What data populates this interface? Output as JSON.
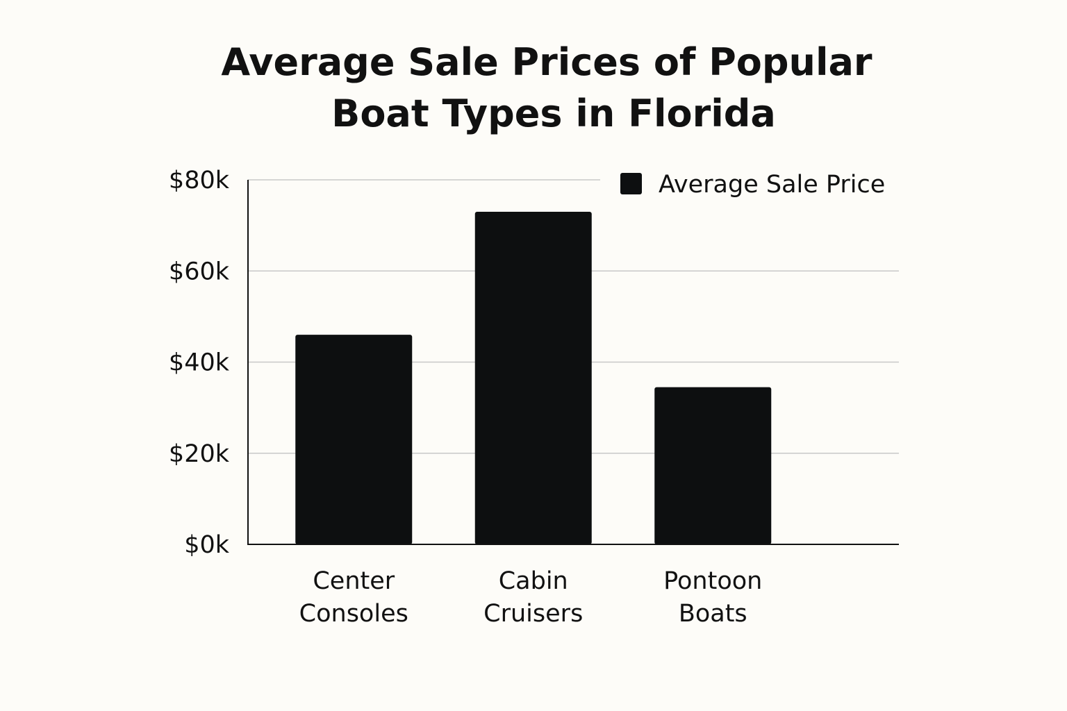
{
  "chart_data": {
    "type": "bar",
    "title_lines": [
      "Average Sale Prices of Popular",
      "Boat Types in Florida"
    ],
    "categories": [
      [
        "Center",
        "Consoles"
      ],
      [
        "Cabin",
        "Cruisers"
      ],
      [
        "Pontoon",
        "Boats"
      ]
    ],
    "series": [
      {
        "name": "Average Sale Price",
        "values": [
          46000,
          73000,
          34500
        ],
        "color": "#0d0f10"
      }
    ],
    "ylim": [
      0,
      80000
    ],
    "yticks": [
      0,
      20000,
      40000,
      60000,
      80000
    ],
    "ytick_labels": [
      "$0k",
      "$20k",
      "$40k",
      "$60k",
      "$80k"
    ],
    "grid": true,
    "legend": "top-right",
    "xlabel": "",
    "ylabel": ""
  },
  "colors": {
    "background": "#fdfcf8",
    "bar": "#0d0f10",
    "grid": "#c8c8c8",
    "axis": "#111111"
  }
}
